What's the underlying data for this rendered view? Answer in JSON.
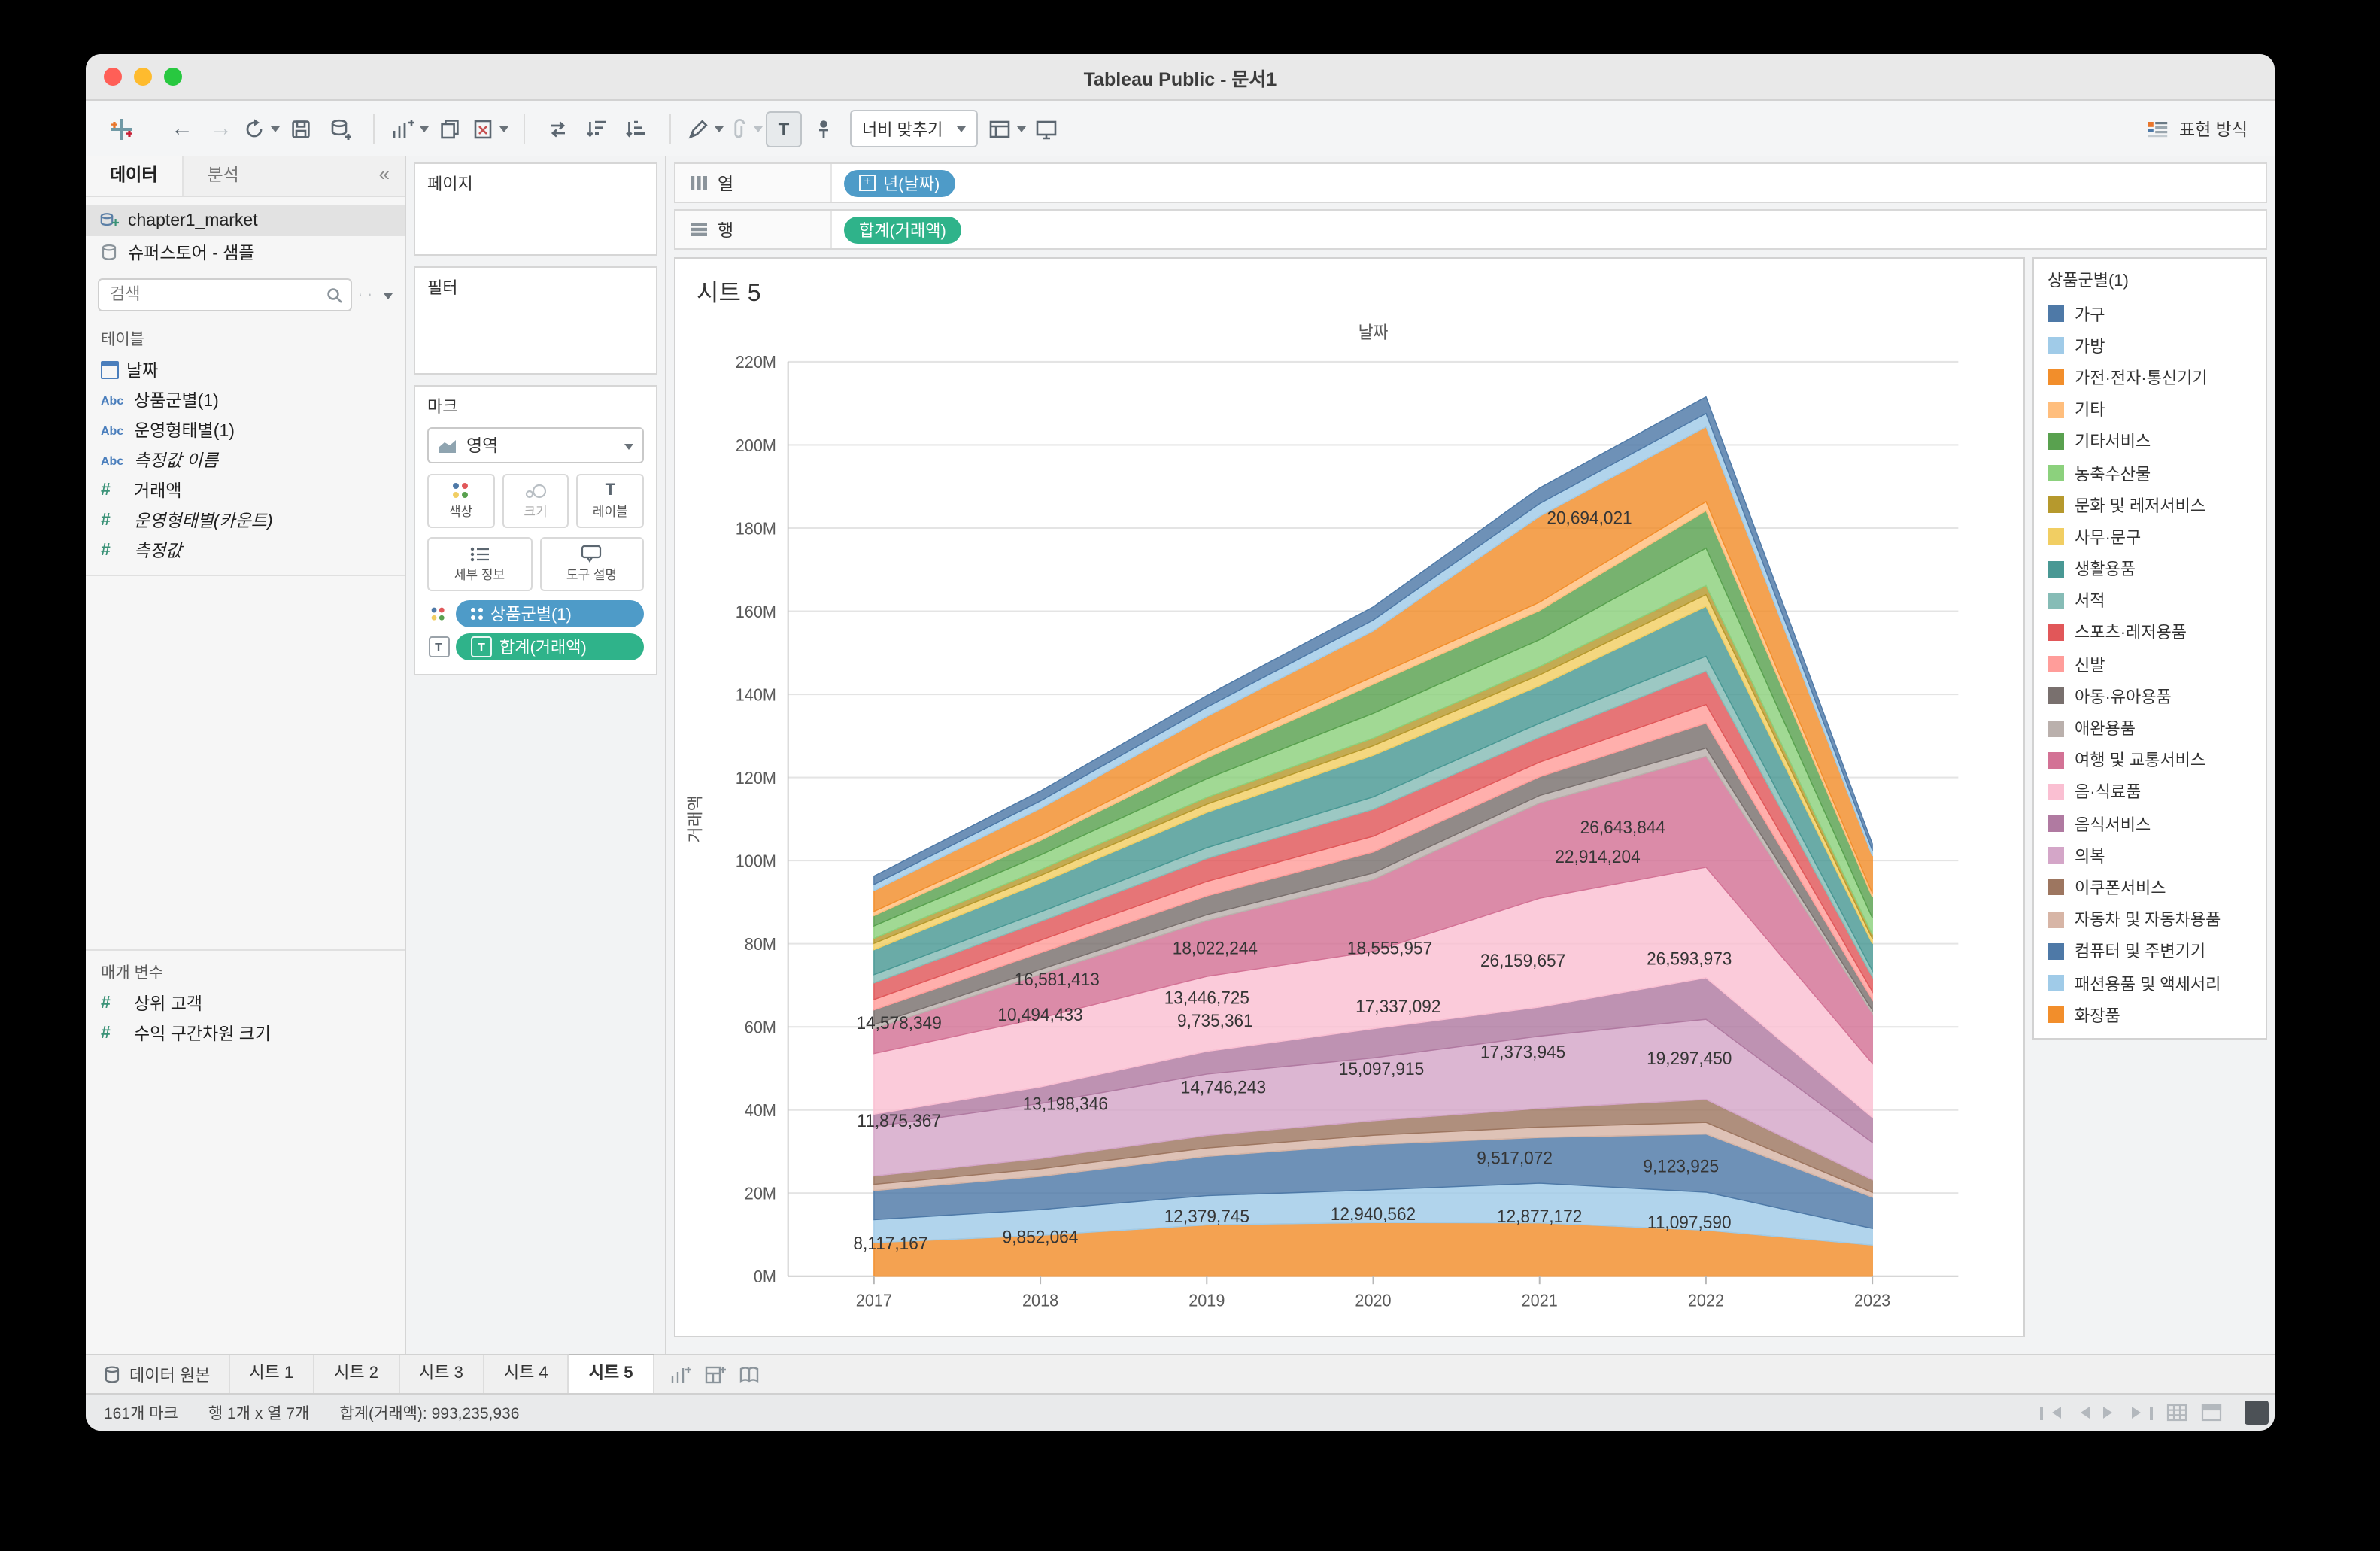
{
  "window": {
    "title": "Tableau Public - 문서1"
  },
  "toolbar": {
    "fit_label": "너비 맞추기",
    "show_me_label": "표현 방식"
  },
  "sidebar": {
    "tabs": {
      "data": "데이터",
      "analytics": "분석"
    },
    "sources": [
      {
        "name": "chapter1_market"
      },
      {
        "name": "슈퍼스토어 - 샘플"
      }
    ],
    "search_placeholder": "검색",
    "tables_label": "테이블",
    "fields": [
      {
        "label": "날짜",
        "cls": "i-cal"
      },
      {
        "label": "상품군별(1)",
        "cls": "i-abc"
      },
      {
        "label": "운영형태별(1)",
        "cls": "i-abc"
      },
      {
        "label": "측정값 이름",
        "cls": "i-abc",
        "italic": true
      },
      {
        "label": "거래액",
        "cls": "i-hash"
      },
      {
        "label": "운영형태별(카운트)",
        "cls": "i-hash",
        "italic": true
      },
      {
        "label": "측정값",
        "cls": "i-hash",
        "italic": true
      }
    ],
    "parameters_label": "매개 변수",
    "parameters": [
      {
        "label": "상위 고객",
        "cls": "i-hash"
      },
      {
        "label": "수익 구간차원 크기",
        "cls": "i-hash"
      }
    ]
  },
  "cards": {
    "pages_label": "페이지",
    "filters_label": "필터",
    "marks_label": "마크",
    "mark_type": "영역",
    "buttons": {
      "color": "색상",
      "size": "크기",
      "label": "레이블",
      "detail": "세부 정보",
      "tooltip": "도구 설명"
    },
    "mark_pills": [
      {
        "label": "상품군별(1)"
      },
      {
        "label": "합계(거래액)"
      }
    ]
  },
  "shelves": {
    "columns_label": "열",
    "rows_label": "행",
    "columns_pill": "년(날짜)",
    "rows_pill": "합계(거래액)"
  },
  "worksheet": {
    "title": "시트 5"
  },
  "legend": {
    "title": "상품군별(1)",
    "items": [
      {
        "label": "가구",
        "color": "#4E79A7"
      },
      {
        "label": "가방",
        "color": "#A0CBE8"
      },
      {
        "label": "가전·전자·통신기기",
        "color": "#F28E2B"
      },
      {
        "label": "기타",
        "color": "#FFBE7D"
      },
      {
        "label": "기타서비스",
        "color": "#59A14F"
      },
      {
        "label": "농축수산물",
        "color": "#8CD17D"
      },
      {
        "label": "문화 및 레저서비스",
        "color": "#B6992D"
      },
      {
        "label": "사무·문구",
        "color": "#F1CE63"
      },
      {
        "label": "생활용품",
        "color": "#499894"
      },
      {
        "label": "서적",
        "color": "#86BCB6"
      },
      {
        "label": "스포츠·레저용품",
        "color": "#E15759"
      },
      {
        "label": "신발",
        "color": "#FF9D9A"
      },
      {
        "label": "아동·유아용품",
        "color": "#79706E"
      },
      {
        "label": "애완용품",
        "color": "#BAB0AC"
      },
      {
        "label": "여행 및 교통서비스",
        "color": "#D37295"
      },
      {
        "label": "음·식료품",
        "color": "#FABFD2"
      },
      {
        "label": "음식서비스",
        "color": "#B07AA1"
      },
      {
        "label": "의복",
        "color": "#D4A6C8"
      },
      {
        "label": "이쿠폰서비스",
        "color": "#9D7660"
      },
      {
        "label": "자동차 및 자동차용품",
        "color": "#D7B5A6"
      },
      {
        "label": "컴퓨터 및 주변기기",
        "color": "#4E79A7"
      },
      {
        "label": "패션용품 및 액세서리",
        "color": "#A0CBE8"
      },
      {
        "label": "화장품",
        "color": "#F28E2B"
      }
    ]
  },
  "chart_data": {
    "type": "area",
    "stacked": true,
    "title": "시트 5",
    "x_title": "날짜",
    "y_title": "거래액",
    "x": [
      2017,
      2018,
      2019,
      2020,
      2021,
      2022,
      2023
    ],
    "ylim": [
      0,
      220
    ],
    "y_tick_step": 20,
    "y_unit": "M",
    "grid": true,
    "legend_position": "right",
    "note": "values in millions; labeled marks are exact, others estimated from plot",
    "series": [
      {
        "name": "화장품",
        "color": "#F28E2B",
        "values": [
          8.117167,
          9.852064,
          12.379745,
          12.940562,
          12.877172,
          11.09759,
          7.5
        ]
      },
      {
        "name": "패션용품 및 액세서리",
        "color": "#A0CBE8",
        "values": [
          5.5,
          6.2,
          7.0,
          7.8,
          9.517072,
          9.123925,
          4.0
        ]
      },
      {
        "name": "컴퓨터 및 주변기기",
        "color": "#4E79A7",
        "values": [
          7.0,
          8.0,
          9.5,
          11.0,
          11.0,
          14.0,
          7.5
        ]
      },
      {
        "name": "자동차 및 자동차용품",
        "color": "#D7B5A6",
        "values": [
          1.5,
          1.8,
          2.0,
          2.2,
          2.5,
          2.8,
          1.2
        ]
      },
      {
        "name": "이쿠폰서비스",
        "color": "#9D7660",
        "values": [
          2.0,
          2.5,
          3.0,
          3.5,
          4.5,
          5.5,
          3.0
        ]
      },
      {
        "name": "의복",
        "color": "#D4A6C8",
        "values": [
          11.875367,
          13.198346,
          14.746243,
          15.097915,
          17.373945,
          19.29745,
          9.0
        ]
      },
      {
        "name": "음식서비스",
        "color": "#B07AA1",
        "values": [
          3.0,
          4.0,
          5.5,
          7.0,
          7.0,
          10.0,
          6.0
        ]
      },
      {
        "name": "음·식료품",
        "color": "#FABFD2",
        "values": [
          14.578349,
          16.581413,
          18.022244,
          18.555957,
          26.159657,
          26.593973,
          13.0
        ]
      },
      {
        "name": "여행 및 교통서비스",
        "color": "#D37295",
        "values": [
          6.0,
          10.494433,
          13.446725,
          17.337092,
          22.914204,
          26.643844,
          12.0
        ]
      },
      {
        "name": "애완용품",
        "color": "#BAB0AC",
        "values": [
          1.0,
          1.2,
          1.4,
          1.6,
          1.8,
          2.0,
          0.8
        ]
      },
      {
        "name": "아동·유아용품",
        "color": "#79706E",
        "values": [
          3.5,
          4.0,
          4.5,
          5.0,
          4.5,
          6.0,
          2.5
        ]
      },
      {
        "name": "신발",
        "color": "#FF9D9A",
        "values": [
          2.5,
          3.0,
          3.5,
          3.8,
          3.5,
          4.5,
          2.0
        ]
      },
      {
        "name": "스포츠·레저용품",
        "color": "#E15759",
        "values": [
          4.0,
          4.5,
          5.5,
          6.5,
          6.0,
          8.0,
          3.5
        ]
      },
      {
        "name": "서적",
        "color": "#86BCB6",
        "values": [
          2.0,
          2.3,
          2.6,
          3.0,
          3.4,
          3.6,
          1.5
        ]
      },
      {
        "name": "생활용품",
        "color": "#499894",
        "values": [
          6.0,
          7.0,
          8.5,
          10.0,
          9.0,
          12.0,
          6.5
        ]
      },
      {
        "name": "사무·문구",
        "color": "#F1CE63",
        "values": [
          1.5,
          1.8,
          2.0,
          2.3,
          2.6,
          2.8,
          1.2
        ]
      },
      {
        "name": "문화 및 레저서비스",
        "color": "#B6992D",
        "values": [
          1.2,
          1.4,
          1.6,
          1.8,
          2.0,
          2.2,
          1.0
        ]
      },
      {
        "name": "농축수산물",
        "color": "#8CD17D",
        "values": [
          3.0,
          3.5,
          4.5,
          6.0,
          6.5,
          9.0,
          4.0
        ]
      },
      {
        "name": "기타서비스",
        "color": "#59A14F",
        "values": [
          2.5,
          3.5,
          5.0,
          7.0,
          7.0,
          9.0,
          5.0
        ]
      },
      {
        "name": "기타",
        "color": "#FFBE7D",
        "values": [
          1.0,
          1.2,
          1.5,
          1.8,
          2.0,
          2.2,
          0.9
        ]
      },
      {
        "name": "가전·전자·통신기기",
        "color": "#F28E2B",
        "values": [
          5.0,
          6.5,
          8.5,
          11.0,
          20.694021,
          18.0,
          9.0
        ]
      },
      {
        "name": "가방",
        "color": "#A0CBE8",
        "values": [
          1.5,
          1.8,
          2.2,
          2.6,
          3.0,
          3.2,
          1.3
        ]
      },
      {
        "name": "가구",
        "color": "#4E79A7",
        "values": [
          2.0,
          2.4,
          2.8,
          3.2,
          3.8,
          4.0,
          1.6
        ]
      }
    ],
    "labels": [
      {
        "x": 2021.3,
        "y": 181,
        "text": "20,694,021"
      },
      {
        "x": 2021.5,
        "y": 106.5,
        "text": "26,643,844"
      },
      {
        "x": 2021.35,
        "y": 99.5,
        "text": "22,914,204"
      },
      {
        "x": 2019.05,
        "y": 77.5,
        "text": "18,022,244"
      },
      {
        "x": 2020.1,
        "y": 77.5,
        "text": "18,555,957"
      },
      {
        "x": 2020.9,
        "y": 74.5,
        "text": "26,159,657"
      },
      {
        "x": 2021.9,
        "y": 75,
        "text": "26,593,973"
      },
      {
        "x": 2018.1,
        "y": 70,
        "text": "16,581,413"
      },
      {
        "x": 2019.0,
        "y": 65.5,
        "text": "13,446,725"
      },
      {
        "x": 2020.15,
        "y": 63.5,
        "text": "17,337,092"
      },
      {
        "x": 2017.15,
        "y": 59.5,
        "text": "14,578,349"
      },
      {
        "x": 2018.0,
        "y": 61.5,
        "text": "10,494,433"
      },
      {
        "x": 2019.05,
        "y": 60,
        "text": "9,735,361"
      },
      {
        "x": 2020.9,
        "y": 52.5,
        "text": "17,373,945"
      },
      {
        "x": 2021.9,
        "y": 51,
        "text": "19,297,450"
      },
      {
        "x": 2020.05,
        "y": 48.5,
        "text": "15,097,915"
      },
      {
        "x": 2019.1,
        "y": 44,
        "text": "14,746,243"
      },
      {
        "x": 2018.15,
        "y": 40,
        "text": "13,198,346"
      },
      {
        "x": 2017.15,
        "y": 36,
        "text": "11,875,367"
      },
      {
        "x": 2020.85,
        "y": 27,
        "text": "9,517,072"
      },
      {
        "x": 2021.85,
        "y": 25,
        "text": "9,123,925"
      },
      {
        "x": 2019.0,
        "y": 13,
        "text": "12,379,745"
      },
      {
        "x": 2020.0,
        "y": 13.5,
        "text": "12,940,562"
      },
      {
        "x": 2021.0,
        "y": 13,
        "text": "12,877,172"
      },
      {
        "x": 2021.9,
        "y": 11.5,
        "text": "11,097,590"
      },
      {
        "x": 2017.1,
        "y": 6.5,
        "text": "8,117,167"
      },
      {
        "x": 2018.0,
        "y": 8,
        "text": "9,852,064"
      }
    ]
  },
  "tabs_bar": {
    "data_source_label": "데이터 원본",
    "sheets": [
      {
        "label": "시트 1"
      },
      {
        "label": "시트 2"
      },
      {
        "label": "시트 3"
      },
      {
        "label": "시트 4"
      },
      {
        "label": "시트 5",
        "active": true
      }
    ]
  },
  "status_bar": {
    "marks": "161개 마크",
    "rows_cols": "행 1개 x 열 7개",
    "sum": "합계(거래액): 993,235,936"
  }
}
